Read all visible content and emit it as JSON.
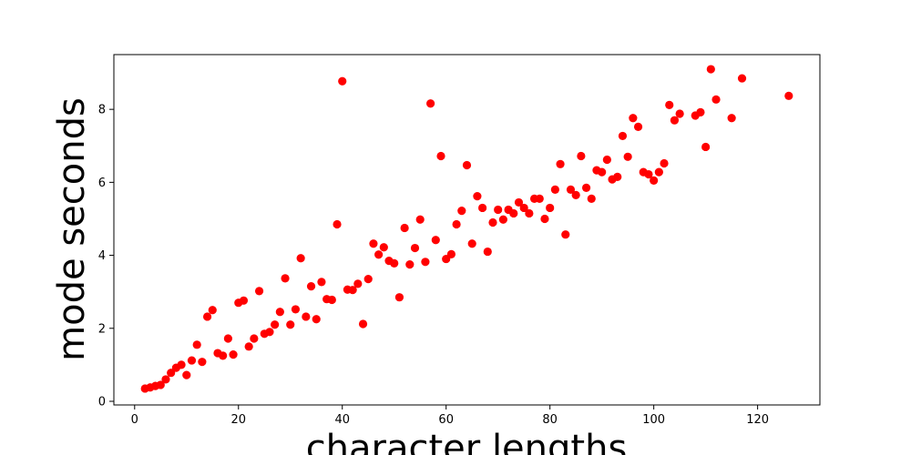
{
  "chart_data": {
    "type": "scatter",
    "title": "",
    "xlabel": "character lengths",
    "ylabel": "mode seconds",
    "xlim": [
      -4,
      132
    ],
    "ylim": [
      -0.1,
      9.5
    ],
    "xticks": [
      0,
      20,
      40,
      60,
      80,
      100,
      120
    ],
    "yticks": [
      0,
      2,
      4,
      6,
      8
    ],
    "xtick_labels": [
      "0",
      "20",
      "40",
      "60",
      "80",
      "100",
      "120"
    ],
    "ytick_labels": [
      "0",
      "2",
      "4",
      "6",
      "8"
    ],
    "grid": false,
    "legend": "none",
    "marker_color": "#ff0000",
    "series": [
      {
        "points": [
          [
            2,
            0.35
          ],
          [
            3,
            0.38
          ],
          [
            4,
            0.42
          ],
          [
            5,
            0.45
          ],
          [
            6,
            0.6
          ],
          [
            7,
            0.78
          ],
          [
            8,
            0.92
          ],
          [
            9,
            1.0
          ],
          [
            10,
            0.72
          ],
          [
            11,
            1.12
          ],
          [
            12,
            1.55
          ],
          [
            13,
            1.08
          ],
          [
            14,
            2.32
          ],
          [
            15,
            2.5
          ],
          [
            16,
            1.32
          ],
          [
            17,
            1.25
          ],
          [
            18,
            1.72
          ],
          [
            19,
            1.28
          ],
          [
            20,
            2.7
          ],
          [
            21,
            2.76
          ],
          [
            22,
            1.5
          ],
          [
            23,
            1.72
          ],
          [
            24,
            3.02
          ],
          [
            25,
            1.85
          ],
          [
            26,
            1.9
          ],
          [
            27,
            2.1
          ],
          [
            28,
            2.45
          ],
          [
            29,
            3.37
          ],
          [
            30,
            2.1
          ],
          [
            31,
            2.52
          ],
          [
            32,
            3.92
          ],
          [
            33,
            2.32
          ],
          [
            34,
            3.15
          ],
          [
            35,
            2.25
          ],
          [
            36,
            3.27
          ],
          [
            37,
            2.8
          ],
          [
            38,
            2.78
          ],
          [
            39,
            4.85
          ],
          [
            40,
            8.77
          ],
          [
            41,
            3.06
          ],
          [
            42,
            3.05
          ],
          [
            43,
            3.22
          ],
          [
            44,
            2.12
          ],
          [
            45,
            3.35
          ],
          [
            46,
            4.32
          ],
          [
            47,
            4.02
          ],
          [
            48,
            4.22
          ],
          [
            49,
            3.85
          ],
          [
            50,
            3.78
          ],
          [
            51,
            2.85
          ],
          [
            52,
            4.75
          ],
          [
            53,
            3.75
          ],
          [
            54,
            4.2
          ],
          [
            55,
            4.98
          ],
          [
            56,
            3.82
          ],
          [
            57,
            8.16
          ],
          [
            58,
            4.42
          ],
          [
            59,
            6.72
          ],
          [
            60,
            3.9
          ],
          [
            61,
            4.03
          ],
          [
            62,
            4.85
          ],
          [
            63,
            5.22
          ],
          [
            64,
            6.47
          ],
          [
            65,
            4.32
          ],
          [
            66,
            5.62
          ],
          [
            67,
            5.3
          ],
          [
            68,
            4.1
          ],
          [
            69,
            4.9
          ],
          [
            70,
            5.25
          ],
          [
            71,
            4.98
          ],
          [
            72,
            5.25
          ],
          [
            73,
            5.15
          ],
          [
            74,
            5.45
          ],
          [
            75,
            5.3
          ],
          [
            76,
            5.15
          ],
          [
            77,
            5.55
          ],
          [
            78,
            5.55
          ],
          [
            79,
            5.0
          ],
          [
            80,
            5.3
          ],
          [
            81,
            5.8
          ],
          [
            82,
            6.5
          ],
          [
            83,
            4.57
          ],
          [
            84,
            5.8
          ],
          [
            85,
            5.65
          ],
          [
            86,
            6.72
          ],
          [
            87,
            5.85
          ],
          [
            88,
            5.55
          ],
          [
            89,
            6.33
          ],
          [
            90,
            6.28
          ],
          [
            91,
            6.62
          ],
          [
            92,
            6.08
          ],
          [
            93,
            6.15
          ],
          [
            94,
            7.27
          ],
          [
            95,
            6.7
          ],
          [
            96,
            7.76
          ],
          [
            97,
            7.52
          ],
          [
            98,
            6.28
          ],
          [
            99,
            6.22
          ],
          [
            100,
            6.05
          ],
          [
            101,
            6.28
          ],
          [
            102,
            6.52
          ],
          [
            103,
            8.12
          ],
          [
            104,
            7.7
          ],
          [
            105,
            7.88
          ],
          [
            108,
            7.83
          ],
          [
            109,
            7.92
          ],
          [
            110,
            6.97
          ],
          [
            111,
            9.1
          ],
          [
            112,
            8.27
          ],
          [
            115,
            7.76
          ],
          [
            117,
            8.85
          ],
          [
            126,
            8.37
          ]
        ]
      }
    ]
  }
}
